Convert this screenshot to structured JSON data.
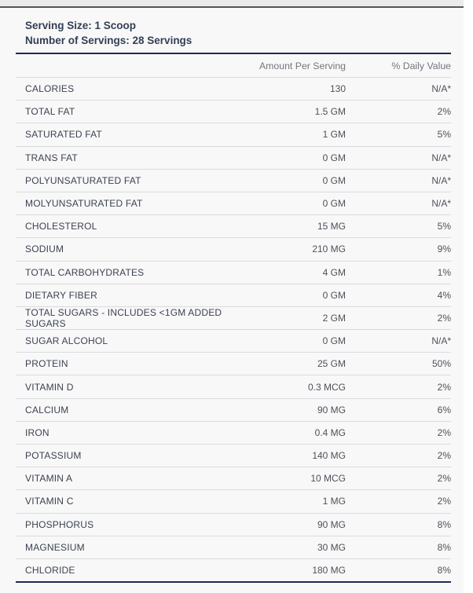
{
  "serving_info": {
    "serving_size": "Serving Size: 1 Scoop",
    "number_of_servings": "Number of Servings: 28 Servings"
  },
  "table": {
    "columns": {
      "amount": "Amount Per Serving",
      "daily_value": "% Daily Value"
    },
    "rows": [
      {
        "name": "CALORIES",
        "amount": "130",
        "dv": "N/A*"
      },
      {
        "name": "TOTAL FAT",
        "amount": "1.5 GM",
        "dv": "2%"
      },
      {
        "name": "SATURATED FAT",
        "amount": "1 GM",
        "dv": "5%"
      },
      {
        "name": "TRANS FAT",
        "amount": "0 GM",
        "dv": "N/A*"
      },
      {
        "name": "POLYUNSATURATED FAT",
        "amount": "0 GM",
        "dv": "N/A*"
      },
      {
        "name": "MOLYUNSATURATED FAT",
        "amount": "0 GM",
        "dv": "N/A*"
      },
      {
        "name": "CHOLESTEROL",
        "amount": "15 MG",
        "dv": "5%"
      },
      {
        "name": "SODIUM",
        "amount": "210 MG",
        "dv": "9%"
      },
      {
        "name": "TOTAL CARBOHYDRATES",
        "amount": "4 GM",
        "dv": "1%"
      },
      {
        "name": "DIETARY FIBER",
        "amount": "0 GM",
        "dv": "4%"
      },
      {
        "name": "TOTAL SUGARS - INCLUDES <1GM ADDED SUGARS",
        "amount": "2 GM",
        "dv": "2%"
      },
      {
        "name": "SUGAR ALCOHOL",
        "amount": "0 GM",
        "dv": "N/A*"
      },
      {
        "name": "PROTEIN",
        "amount": "25 GM",
        "dv": "50%"
      },
      {
        "name": "VITAMIN D",
        "amount": "0.3 MCG",
        "dv": "2%"
      },
      {
        "name": "CALCIUM",
        "amount": "90 MG",
        "dv": "6%"
      },
      {
        "name": "IRON",
        "amount": "0.4 MG",
        "dv": "2%"
      },
      {
        "name": "POTASSIUM",
        "amount": "140 MG",
        "dv": "2%"
      },
      {
        "name": "VITAMIN A",
        "amount": "10 MCG",
        "dv": "2%"
      },
      {
        "name": "VITAMIN C",
        "amount": "1 MG",
        "dv": "2%"
      },
      {
        "name": "PHOSPHORUS",
        "amount": "90 MG",
        "dv": "8%"
      },
      {
        "name": "MAGNESIUM",
        "amount": "30 MG",
        "dv": "8%"
      },
      {
        "name": "CHLORIDE",
        "amount": "180 MG",
        "dv": "8%"
      }
    ]
  },
  "colors": {
    "accent_navy": "#1b2b50",
    "row_divider": "#dadbdc",
    "top_rule": "#55565a",
    "label_text": "#3c4250",
    "header_text": "#74767c"
  }
}
